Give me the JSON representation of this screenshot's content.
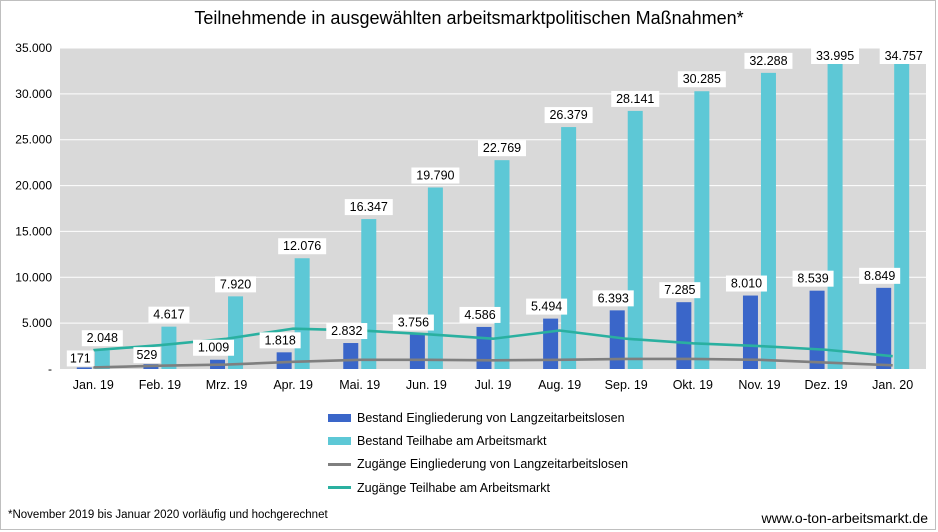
{
  "title": "Teilnehmende in ausgewählten arbeitsmarktpolitischen Maßnahmen*",
  "footnote": "*November 2019 bis Januar 2020 vorläufig und hochgerechnet",
  "source": "www.o-ton-arbeitsmarkt.de",
  "colors": {
    "plot_bg": "#d9d9d9",
    "grid": "#ffffff",
    "series": [
      "#3a66c9",
      "#5dc8d6",
      "#7f7f7f",
      "#2ab0a0"
    ]
  },
  "chart_data": {
    "type": "bar",
    "title": "Teilnehmende in ausgewählten arbeitsmarktpolitischen Maßnahmen*",
    "categories": [
      "Jan. 19",
      "Feb. 19",
      "Mrz. 19",
      "Apr. 19",
      "Mai. 19",
      "Jun. 19",
      "Jul. 19",
      "Aug. 19",
      "Sep. 19",
      "Okt. 19",
      "Nov. 19",
      "Dez. 19",
      "Jan. 20"
    ],
    "ylim": [
      0,
      35000
    ],
    "yticks": [
      0,
      5000,
      10000,
      15000,
      20000,
      25000,
      30000,
      35000
    ],
    "ytick_labels": [
      "-",
      "5.000",
      "10.000",
      "15.000",
      "20.000",
      "25.000",
      "30.000",
      "35.000"
    ],
    "grid": true,
    "legend_position": "bottom",
    "series": [
      {
        "name": "Bestand Eingliederung von Langzeitarbeitslosen",
        "type": "bar",
        "values": [
          171,
          529,
          1009,
          1818,
          2832,
          3756,
          4586,
          5494,
          6393,
          7285,
          8010,
          8539,
          8849
        ],
        "labels": [
          "171",
          "529",
          "1.009",
          "1.818",
          "2.832",
          "3.756",
          "4.586",
          "5.494",
          "6.393",
          "7.285",
          "8.010",
          "8.539",
          "8.849"
        ]
      },
      {
        "name": "Bestand Teilhabe am Arbeitsmarkt",
        "type": "bar",
        "values": [
          2048,
          4617,
          7920,
          12076,
          16347,
          19790,
          22769,
          26379,
          28141,
          30285,
          32288,
          33995,
          34757
        ],
        "labels": [
          "2.048",
          "4.617",
          "7.920",
          "12.076",
          "16.347",
          "19.790",
          "22.769",
          "26.379",
          "28.141",
          "30.285",
          "32.288",
          "33.995",
          "34.757"
        ]
      },
      {
        "name": "Zugänge Eingliederung von Langzeitarbeitslosen",
        "type": "line",
        "values": [
          170,
          360,
          480,
          780,
          1000,
          1000,
          950,
          1000,
          1100,
          1100,
          1000,
          700,
          400
        ]
      },
      {
        "name": "Zugänge Teilhabe am Arbeitsmarkt",
        "type": "line",
        "values": [
          2050,
          2600,
          3300,
          4400,
          4200,
          3800,
          3300,
          4200,
          3300,
          2800,
          2500,
          2100,
          1400
        ]
      }
    ]
  }
}
